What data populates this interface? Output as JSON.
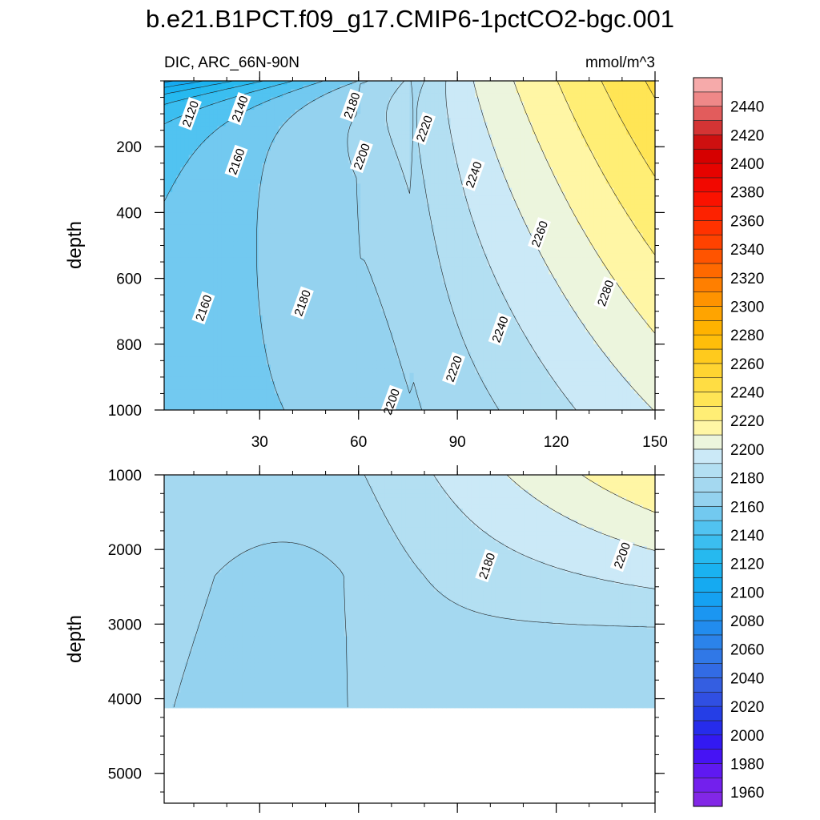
{
  "chart_data": {
    "type": "contour",
    "title": "b.e21.B1PCT.f09_g17.CMIP6-1pctCO2-bgc.001",
    "subtitle_left": "DIC, ARC_66N-90N",
    "units": "mmol/m^3",
    "xaxis": {
      "range": [
        1,
        150
      ],
      "ticks": [
        30,
        60,
        90,
        120,
        150
      ],
      "tick_labels": [
        "30",
        "60",
        "90",
        "120",
        "150"
      ]
    },
    "upper_panel": {
      "ylabel": "depth",
      "ylim": [
        0,
        1000
      ],
      "y_ticks": [
        200,
        400,
        600,
        800,
        1000
      ],
      "y_tick_labels": [
        "200",
        "400",
        "600",
        "800",
        "1000"
      ],
      "contour_labels": [
        {
          "text": "2120",
          "x": 9,
          "y": 100
        },
        {
          "text": "2140",
          "x": 24,
          "y": 85
        },
        {
          "text": "2180",
          "x": 58,
          "y": 75
        },
        {
          "text": "2220",
          "x": 80,
          "y": 145
        },
        {
          "text": "2160",
          "x": 23,
          "y": 245
        },
        {
          "text": "2200",
          "x": 61,
          "y": 230
        },
        {
          "text": "2240",
          "x": 95,
          "y": 285
        },
        {
          "text": "2260",
          "x": 115,
          "y": 465
        },
        {
          "text": "2280",
          "x": 135,
          "y": 645
        },
        {
          "text": "2160",
          "x": 13,
          "y": 690
        },
        {
          "text": "2180",
          "x": 43,
          "y": 675
        },
        {
          "text": "2240",
          "x": 103,
          "y": 755
        },
        {
          "text": "2220",
          "x": 89,
          "y": 875
        },
        {
          "text": "2200",
          "x": 70,
          "y": 975
        }
      ]
    },
    "lower_panel": {
      "ylabel": "depth",
      "ylim": [
        1000,
        5400
      ],
      "y_ticks": [
        1000,
        2000,
        3000,
        4000,
        5000
      ],
      "y_tick_labels": [
        "1000",
        "2000",
        "3000",
        "4000",
        "5000"
      ],
      "max_depth": 4120,
      "contour_labels": [
        {
          "text": "2180",
          "x": 99,
          "y": 2220
        },
        {
          "text": "2200",
          "x": 140,
          "y": 2080
        }
      ]
    },
    "colorbar": {
      "levels_min": 1950,
      "levels_max": 2460,
      "step": 10,
      "labels": [
        "2440",
        "2420",
        "2400",
        "2380",
        "2360",
        "2340",
        "2320",
        "2300",
        "2280",
        "2260",
        "2240",
        "2220",
        "2200",
        "2180",
        "2160",
        "2140",
        "2120",
        "2100",
        "2080",
        "2060",
        "2040",
        "2020",
        "2000",
        "1980",
        "1960"
      ],
      "label_values": [
        2440,
        2420,
        2400,
        2380,
        2360,
        2340,
        2320,
        2300,
        2280,
        2260,
        2240,
        2220,
        2200,
        2180,
        2160,
        2140,
        2120,
        2100,
        2080,
        2060,
        2040,
        2020,
        2000,
        1980,
        1960
      ]
    }
  }
}
